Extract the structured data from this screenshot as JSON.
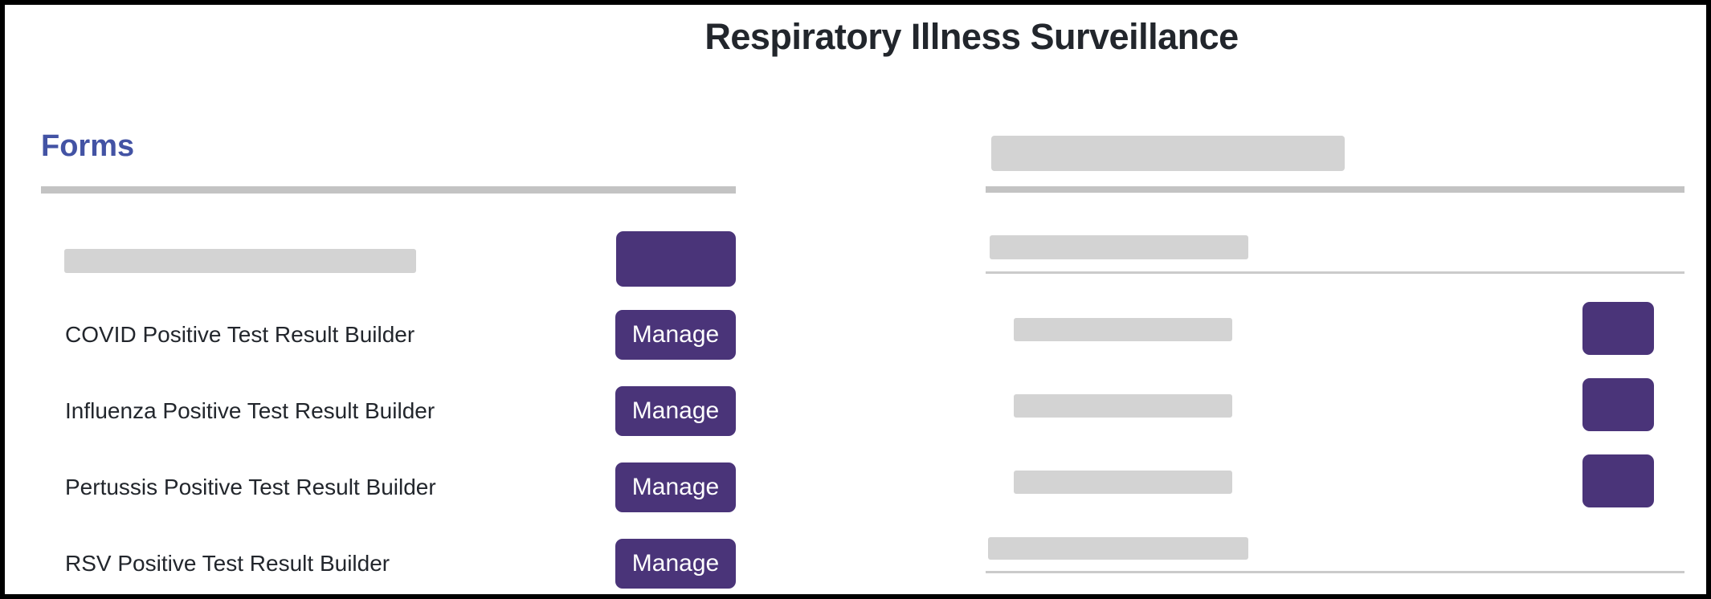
{
  "page": {
    "title": "Respiratory Illness Surveillance"
  },
  "colors": {
    "accent_purple": "#4A3479",
    "heading_blue": "#4353A4",
    "skeleton_gray": "#D3D3D3",
    "divider_gray": "#C3C3C3",
    "thin_line_gray": "#CBCBCB",
    "text_dark": "#22262C",
    "frame_black": "#000000"
  },
  "forms_section": {
    "heading": "Forms",
    "items": [
      {
        "label": "COVID Positive Test Result Builder",
        "button_label": "Manage"
      },
      {
        "label": "Influenza Positive Test Result Builder",
        "button_label": "Manage"
      },
      {
        "label": "Pertussis Positive Test Result Builder",
        "button_label": "Manage"
      },
      {
        "label": "RSV Positive Test Result Builder",
        "button_label": "Manage"
      }
    ]
  }
}
